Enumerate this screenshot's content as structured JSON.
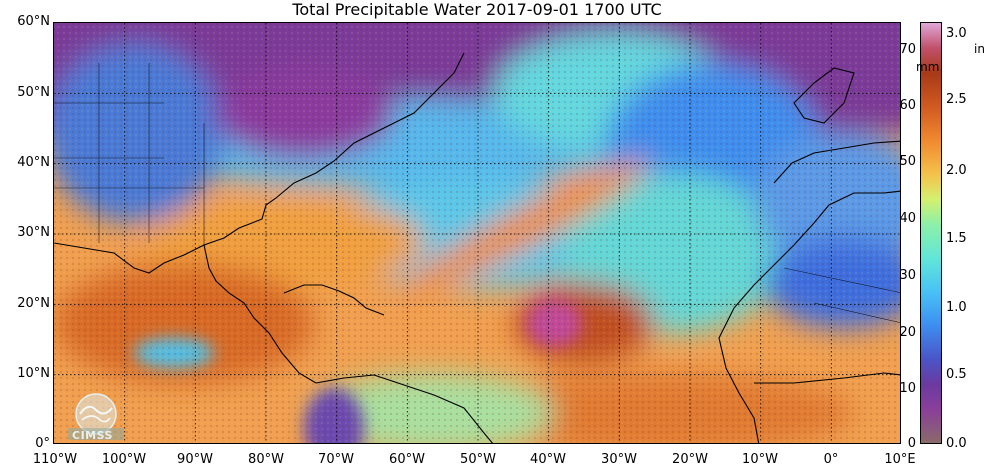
{
  "title": "Total Precipitable Water  2017-09-01 1700 UTC",
  "lat_labels": [
    "60°N",
    "50°N",
    "40°N",
    "30°N",
    "20°N",
    "10°N",
    "0°"
  ],
  "lon_labels": [
    "110°W",
    "100°W",
    "90°W",
    "80°W",
    "70°W",
    "60°W",
    "50°W",
    "40°W",
    "30°W",
    "20°W",
    "10°W",
    "0°",
    "10°E"
  ],
  "colorbar": {
    "unit_mm": "mm",
    "unit_in": "in",
    "mm_ticks": [
      "70",
      "60",
      "50",
      "40",
      "30",
      "20",
      "10",
      "0"
    ],
    "in_ticks": [
      "3.0",
      "2.5",
      "2.0",
      "1.5",
      "1.0",
      "0.5",
      "0.0"
    ]
  },
  "logo_text": "CIMSS",
  "colors": {
    "dry": "#6a3aa0",
    "mid": "#48c2f5",
    "moist": "#f08a30",
    "very_moist": "#a83a18"
  }
}
